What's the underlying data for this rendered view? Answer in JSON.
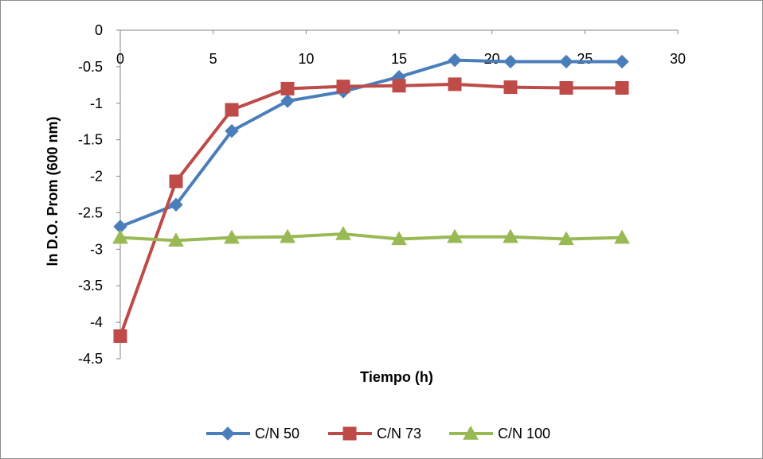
{
  "chart_data": {
    "type": "line",
    "xlabel": "Tiempo (h)",
    "ylabel": "ln D.O. Prom (600 nm)",
    "xlim": [
      0,
      30
    ],
    "ylim": [
      -4.5,
      0
    ],
    "x_ticks": [
      0,
      5,
      10,
      15,
      20,
      25,
      30
    ],
    "y_ticks": [
      0,
      -0.5,
      -1,
      -1.5,
      -2,
      -2.5,
      -3,
      -3.5,
      -4,
      -4.5
    ],
    "x_tick_labels": [
      "0",
      "5",
      "10",
      "15",
      "20",
      "25",
      "30"
    ],
    "y_tick_labels": [
      "0",
      "-0.5",
      "-1",
      "-1.5",
      "-2",
      "-2.5",
      "-3",
      "-3.5",
      "-4",
      "-4.5"
    ],
    "gridlines": false,
    "legend_position": "bottom",
    "series": [
      {
        "name": "C/N 50",
        "color": "#4a7ebb",
        "marker": "diamond",
        "x": [
          0,
          3,
          6,
          9,
          12,
          15,
          18,
          21,
          24,
          27
        ],
        "y": [
          -2.69,
          -2.39,
          -1.38,
          -0.97,
          -0.84,
          -0.64,
          -0.41,
          -0.43,
          -0.43,
          -0.43
        ]
      },
      {
        "name": "C/N 73",
        "color": "#be4b48",
        "marker": "square",
        "x": [
          0,
          3,
          6,
          9,
          12,
          15,
          18,
          21,
          24,
          27
        ],
        "y": [
          -4.19,
          -2.07,
          -1.09,
          -0.8,
          -0.77,
          -0.76,
          -0.74,
          -0.78,
          -0.79,
          -0.79
        ]
      },
      {
        "name": "C/N 100",
        "color": "#98b954",
        "marker": "triangle",
        "x": [
          0,
          3,
          6,
          9,
          12,
          15,
          18,
          21,
          24,
          27
        ],
        "y": [
          -2.84,
          -2.88,
          -2.84,
          -2.83,
          -2.79,
          -2.86,
          -2.83,
          -2.83,
          -2.86,
          -2.84
        ]
      }
    ]
  }
}
